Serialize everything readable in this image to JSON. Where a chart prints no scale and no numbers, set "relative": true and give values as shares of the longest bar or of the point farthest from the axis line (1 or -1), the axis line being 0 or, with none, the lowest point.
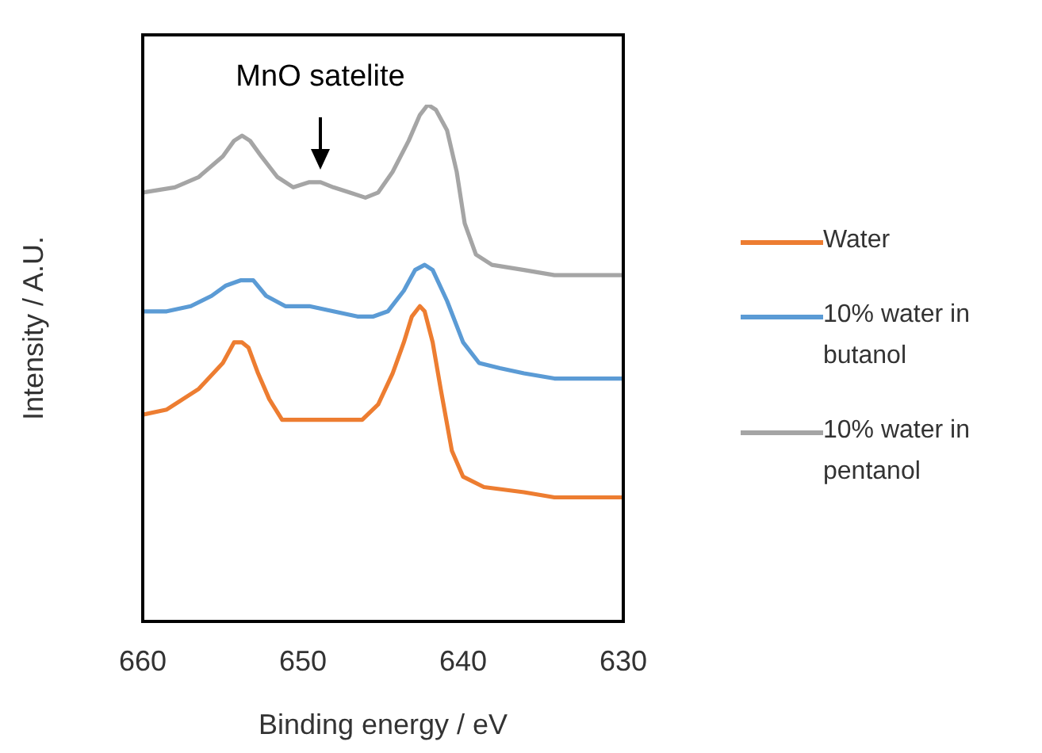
{
  "chart_data": {
    "type": "line",
    "xlabel": "Binding energy / eV",
    "ylabel": "Intensity / A.U.",
    "relative": true,
    "xlim": [
      660,
      630
    ],
    "xticks": [
      660,
      650,
      640,
      630
    ],
    "legend": "right",
    "marker": "none",
    "line_style": "solid",
    "annotations": [
      "MnO satelite"
    ],
    "series": [
      {
        "name": "Water",
        "color": "#ed7d31",
        "x": [
          660,
          658.5,
          657.5,
          656.5,
          655,
          654.3,
          653.8,
          653.4,
          652.8,
          652.1,
          651.3,
          650.1,
          648.6,
          647.1,
          646.3,
          645.3,
          644.4,
          643.7,
          643.2,
          642.7,
          642.4,
          641.9,
          641.4,
          640.7,
          640,
          638.7,
          636.2,
          634.3,
          632.3,
          630
        ],
        "values": [
          0.4,
          0.41,
          0.43,
          0.45,
          0.5,
          0.54,
          0.54,
          0.53,
          0.48,
          0.43,
          0.39,
          0.39,
          0.39,
          0.39,
          0.39,
          0.42,
          0.48,
          0.54,
          0.59,
          0.61,
          0.6,
          0.54,
          0.45,
          0.33,
          0.28,
          0.26,
          0.25,
          0.24,
          0.24,
          0.24
        ]
      },
      {
        "name": "10% water in butanol",
        "color": "#5b9bd5",
        "x": [
          660,
          658.5,
          657,
          655.7,
          654.8,
          653.9,
          653.1,
          652.3,
          651.1,
          649.6,
          648.1,
          646.6,
          645.6,
          644.7,
          643.7,
          643,
          642.4,
          641.9,
          641,
          640,
          639,
          637.7,
          636.2,
          634.3,
          632.3,
          630
        ],
        "values": [
          0.6,
          0.6,
          0.61,
          0.63,
          0.65,
          0.66,
          0.66,
          0.63,
          0.61,
          0.61,
          0.6,
          0.59,
          0.59,
          0.6,
          0.64,
          0.68,
          0.69,
          0.68,
          0.62,
          0.54,
          0.5,
          0.49,
          0.48,
          0.47,
          0.47,
          0.47
        ]
      },
      {
        "name": "10% water in pentanol",
        "color": "#a5a5a5",
        "x": [
          660,
          658,
          656.5,
          655,
          654.3,
          653.8,
          653.3,
          652.6,
          651.6,
          650.6,
          649.6,
          648.9,
          648.1,
          647.1,
          646.1,
          645.3,
          644.4,
          643.4,
          642.7,
          642.2,
          641.7,
          641,
          640.4,
          639.9,
          639.2,
          638.2,
          636.2,
          634.3,
          632.3,
          630
        ],
        "values": [
          0.83,
          0.84,
          0.86,
          0.9,
          0.93,
          0.94,
          0.93,
          0.9,
          0.86,
          0.84,
          0.85,
          0.85,
          0.84,
          0.83,
          0.82,
          0.83,
          0.87,
          0.93,
          0.98,
          1.0,
          0.99,
          0.95,
          0.87,
          0.77,
          0.71,
          0.69,
          0.68,
          0.67,
          0.67,
          0.67
        ]
      }
    ]
  }
}
